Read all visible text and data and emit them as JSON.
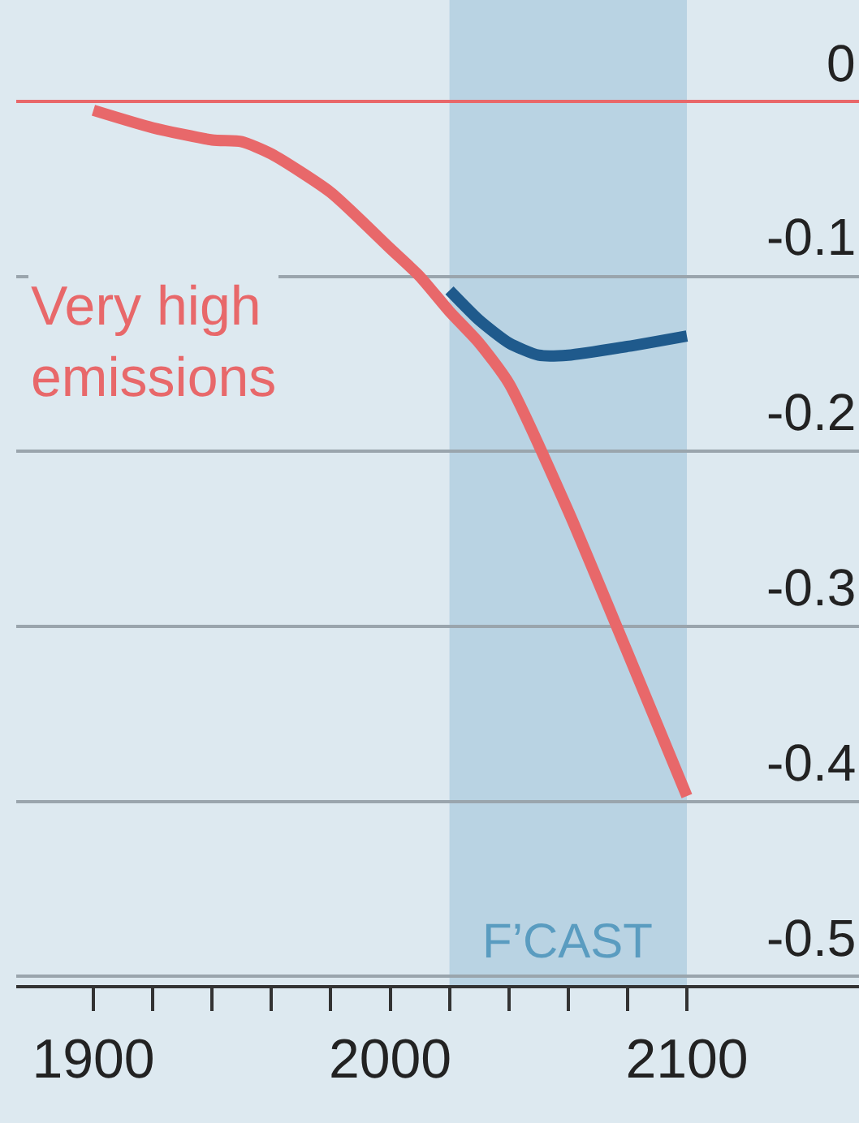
{
  "chart_data": {
    "type": "line",
    "xlim": [
      1874,
      2158
    ],
    "ylim": [
      -0.505,
      0.058
    ],
    "xticks": [
      1900,
      {
        "value": 1920,
        "label": null
      },
      {
        "value": 1940,
        "label": null
      },
      {
        "value": 1960,
        "label": null
      },
      {
        "value": 1980,
        "label": null
      },
      2000,
      {
        "value": 2020,
        "label": null
      },
      {
        "value": 2040,
        "label": null
      },
      {
        "value": 2060,
        "label": null
      },
      {
        "value": 2080,
        "label": null
      },
      2100
    ],
    "yticks": [
      0,
      -0.1,
      -0.2,
      -0.3,
      -0.4,
      -0.5
    ],
    "grid": "y",
    "marker": "none",
    "line_style": "solid",
    "series": [
      {
        "name": "Very high emissions",
        "color": "#e8686a",
        "x": [
          1900,
          1920,
          1940,
          1950,
          1960,
          1980,
          2000,
          2010,
          2020,
          2030,
          2040,
          2060,
          2080,
          2100
        ],
        "values": [
          -0.005,
          -0.015,
          -0.022,
          -0.023,
          -0.03,
          -0.052,
          -0.084,
          -0.1,
          -0.12,
          -0.138,
          -0.161,
          -0.234,
          -0.315,
          -0.397
        ]
      },
      {
        "color": "#1f5a8c",
        "x": [
          2020,
          2030,
          2040,
          2050,
          2060,
          2080,
          2100
        ],
        "values": [
          -0.108,
          -0.125,
          -0.138,
          -0.145,
          -0.145,
          -0.14,
          -0.134
        ]
      }
    ],
    "ref_lines": [
      {
        "axis": "y",
        "value": 0,
        "color": "#e8686a"
      }
    ],
    "bands": [
      {
        "axis": "x",
        "from": 2020,
        "to": 2100,
        "label": "F’CAST",
        "color": "#b9d3e3"
      }
    ]
  }
}
